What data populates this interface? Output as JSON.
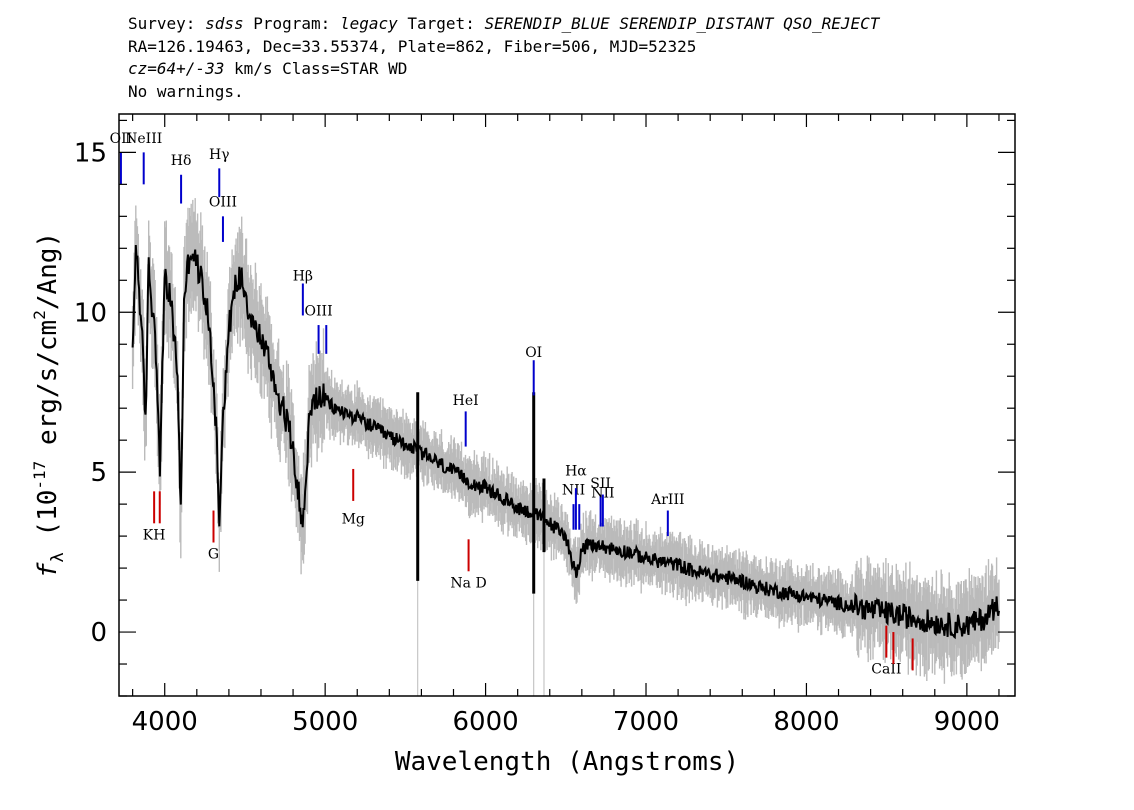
{
  "header": {
    "survey_key": "Survey:",
    "survey": "sdss",
    "program_key": "Program:",
    "program": "legacy",
    "target_key": "Target:",
    "target": "SERENDIP_BLUE SERENDIP_DISTANT QSO_REJECT",
    "line2": "RA=126.19463, Dec=33.55374, Plate=862, Fiber=506, MJD=52325",
    "cz": "cz=64+/-33",
    "line3_rest": " km/s Class=STAR WD",
    "line4": "No warnings."
  },
  "chart_data": {
    "type": "line",
    "xlabel": "Wavelength (Angstroms)",
    "ylabel": "f_λ (10^-17 erg/s/cm²/Ang)",
    "ylabel_parts": {
      "prefix": "(10",
      "exp1": "-17",
      "mid": " erg/s/cm",
      "exp2": "2",
      "suffix": "/Ang)",
      "f": "f",
      "sub": "λ"
    },
    "xlim": [
      3715,
      9300
    ],
    "ylim": [
      -2,
      16.2
    ],
    "x_ticks": [
      4000,
      5000,
      6000,
      7000,
      8000,
      9000
    ],
    "x_tick_labels": [
      "4000",
      "5000",
      "6000",
      "7000",
      "8000",
      "9000"
    ],
    "y_ticks": [
      0,
      5,
      10,
      15
    ],
    "y_tick_labels": [
      "0",
      "5",
      "10",
      "15"
    ],
    "x_minor_step": 200,
    "y_minor_step": 1,
    "spectrum": {
      "x": [
        3800,
        3820,
        3840,
        3860,
        3880,
        3900,
        3920,
        3940,
        3960,
        3970,
        3980,
        4000,
        4040,
        4080,
        4101,
        4120,
        4160,
        4200,
        4240,
        4280,
        4320,
        4340,
        4360,
        4400,
        4440,
        4480,
        4520,
        4560,
        4600,
        4650,
        4700,
        4750,
        4800,
        4830,
        4861,
        4880,
        4900,
        4930,
        4960,
        5000,
        5050,
        5100,
        5200,
        5300,
        5400,
        5500,
        5600,
        5700,
        5800,
        5900,
        6000,
        6100,
        6200,
        6300,
        6400,
        6500,
        6563,
        6600,
        6650,
        6700,
        6800,
        6900,
        7000,
        7100,
        7200,
        7300,
        7400,
        7500,
        7600,
        7700,
        7800,
        7900,
        8000,
        8100,
        8200,
        8300,
        8400,
        8500,
        8600,
        8700,
        8800,
        8900,
        9000,
        9100,
        9200
      ],
      "y": [
        8.5,
        12.2,
        10.8,
        9.0,
        6.5,
        11.5,
        10.2,
        9.5,
        7.0,
        4.5,
        7.5,
        11.0,
        10.3,
        8.0,
        3.5,
        10.5,
        12.0,
        11.5,
        10.8,
        9.5,
        6.5,
        3.5,
        6.5,
        9.5,
        10.8,
        11.2,
        10.2,
        9.5,
        9.2,
        8.5,
        7.5,
        6.8,
        5.8,
        4.5,
        3.2,
        4.8,
        6.5,
        7.2,
        7.4,
        7.3,
        7.0,
        6.9,
        6.7,
        6.4,
        6.1,
        5.9,
        5.6,
        5.3,
        5.0,
        4.7,
        4.5,
        4.2,
        3.9,
        3.7,
        3.4,
        3.0,
        1.8,
        2.6,
        2.7,
        2.7,
        2.6,
        2.5,
        2.3,
        2.2,
        2.1,
        1.9,
        1.8,
        1.7,
        1.6,
        1.4,
        1.3,
        1.2,
        1.1,
        1.0,
        0.9,
        0.8,
        0.7,
        0.6,
        0.5,
        0.4,
        0.3,
        0.2,
        0.2,
        0.4,
        0.9
      ]
    },
    "spikes": [
      {
        "x": 5577,
        "y_top": 7.5,
        "y_bottom": 1.6
      },
      {
        "x": 6300,
        "y_top": 7.5,
        "y_bottom": 1.2
      },
      {
        "x": 6364,
        "y_top": 4.8,
        "y_bottom": 2.5
      }
    ],
    "emission_lines": [
      {
        "label": "OII",
        "x": 3727,
        "label_y": 15.3,
        "y1": 15.0,
        "y2": 14.0,
        "color": "#0000cc"
      },
      {
        "label": "NeIII",
        "x": 3869,
        "label_y": 15.3,
        "y1": 15.0,
        "y2": 14.0,
        "color": "#0000cc"
      },
      {
        "label": "Hδ",
        "x": 4102,
        "label_y": 14.6,
        "y1": 14.3,
        "y2": 13.4,
        "color": "#0000cc"
      },
      {
        "label": "Hγ",
        "x": 4340,
        "label_y": 14.8,
        "y1": 14.5,
        "y2": 13.6,
        "color": "#0000cc"
      },
      {
        "label": "OIII",
        "x": 4363,
        "label_y": 13.3,
        "y1": 13.0,
        "y2": 12.2,
        "color": "#0000cc"
      },
      {
        "label": "Hβ",
        "x": 4861,
        "label_y": 11.0,
        "y1": 10.9,
        "y2": 9.9,
        "color": "#0000cc"
      },
      {
        "label": "OIII",
        "x": 4959,
        "label_y": 9.9,
        "y1": 9.6,
        "y2": 8.7,
        "color": "#0000cc"
      },
      {
        "label": "",
        "x": 5007,
        "label_y": 9.9,
        "y1": 9.6,
        "y2": 8.7,
        "color": "#0000cc"
      },
      {
        "label": "OI",
        "x": 6300,
        "label_y": 8.6,
        "y1": 8.5,
        "y2": 7.4,
        "color": "#0000cc"
      },
      {
        "label": "HeI",
        "x": 5876,
        "label_y": 7.1,
        "y1": 6.9,
        "y2": 5.8,
        "color": "#0000cc"
      },
      {
        "label": "NII",
        "x": 6548,
        "label_y": 4.3,
        "y1": 4.0,
        "y2": 3.2,
        "color": "#0000cc"
      },
      {
        "label": "Hα",
        "x": 6563,
        "label_y": 4.9,
        "y1": 4.5,
        "y2": 3.2,
        "color": "#0000cc"
      },
      {
        "label": "",
        "x": 6584,
        "label_y": 4.3,
        "y1": 4.0,
        "y2": 3.2,
        "color": "#0000cc"
      },
      {
        "label": "SII",
        "x": 6717,
        "label_y": 4.5,
        "y1": 4.3,
        "y2": 3.3,
        "color": "#0000cc"
      },
      {
        "label": "NII",
        "x": 6731,
        "label_y": 4.2,
        "y1": 4.3,
        "y2": 3.3,
        "color": "#0000cc"
      },
      {
        "label": "ArIII",
        "x": 7136,
        "label_y": 4.0,
        "y1": 3.8,
        "y2": 3.0,
        "color": "#0000cc"
      }
    ],
    "absorption_lines": [
      {
        "label": "KH",
        "x": 3934,
        "label_y": 2.9,
        "y1": 4.4,
        "y2": 3.4,
        "color": "#cc0000"
      },
      {
        "label": "",
        "x": 3969,
        "label_y": 2.9,
        "y1": 4.4,
        "y2": 3.4,
        "color": "#cc0000"
      },
      {
        "label": "G",
        "x": 4304,
        "label_y": 2.3,
        "y1": 3.8,
        "y2": 2.8,
        "color": "#cc0000"
      },
      {
        "label": "Mg",
        "x": 5175,
        "label_y": 3.4,
        "y1": 5.1,
        "y2": 4.1,
        "color": "#cc0000"
      },
      {
        "label": "Na D",
        "x": 5894,
        "label_y": 1.4,
        "y1": 2.9,
        "y2": 1.9,
        "color": "#cc0000"
      },
      {
        "label": "CaII",
        "x": 8498,
        "label_y": -1.3,
        "y1": 0.2,
        "y2": -0.8,
        "color": "#cc0000"
      },
      {
        "label": "",
        "x": 8542,
        "label_y": -1.3,
        "y1": 0.0,
        "y2": -1.0,
        "color": "#cc0000"
      },
      {
        "label": "",
        "x": 8662,
        "label_y": -1.3,
        "y1": -0.2,
        "y2": -1.2,
        "color": "#cc0000"
      }
    ],
    "colors": {
      "spectrum": "#000000",
      "noise": "#bbbbbb",
      "emission": "#0000cc",
      "absorption": "#cc0000"
    }
  }
}
